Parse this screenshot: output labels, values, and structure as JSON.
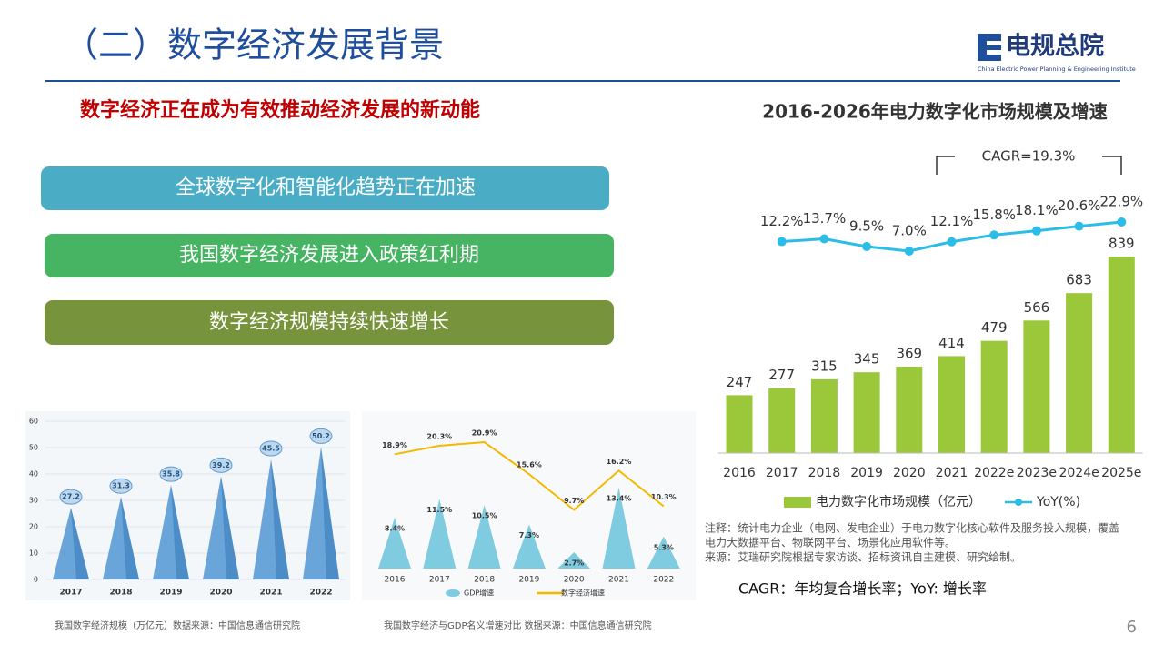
{
  "header": {
    "title": "（二）数字经济发展背景",
    "logo": "电规总院",
    "logo_sub": "China Electric Power Planning & Engineering Institute"
  },
  "subtitle": "数字经济正在成为有效推动经济发展的新动能",
  "boxes": [
    "全球数字化和智能化趋势正在加速",
    "我国数字经济发展进入政策红利期",
    "数字经济规模持续快速增长"
  ],
  "footnote": "CAGR：年均复合增长率；YoY: 增长率",
  "page_number": "6",
  "chart_data": [
    {
      "type": "bar",
      "caption": "我国数字经济规模（万亿元）数据来源：中国信息通信研究院",
      "categories": [
        "2017",
        "2018",
        "2019",
        "2020",
        "2021",
        "2022"
      ],
      "values": [
        27.2,
        31.3,
        35.8,
        39.2,
        45.5,
        50.2
      ],
      "color": "#5b9bd5",
      "ylim": [
        0,
        60
      ],
      "yticks": [
        0,
        10,
        20,
        30,
        40,
        50,
        60
      ],
      "grid": true
    },
    {
      "type": "bar-line",
      "caption": "我国数字经济与GDP名义增速对比 数据来源：中国信息通信研究院",
      "categories": [
        "2016",
        "2017",
        "2018",
        "2019",
        "2020",
        "2021",
        "2022"
      ],
      "series": [
        {
          "name": "GDP增速",
          "type": "bar",
          "color": "#7fcbe0",
          "values": [
            8.4,
            11.5,
            10.5,
            7.3,
            2.7,
            13.4,
            5.3
          ],
          "value_labels": [
            "8.4%",
            "11.5%",
            "10.5%",
            "7.3%",
            "2.7%",
            "13.4%",
            "5.3%"
          ]
        },
        {
          "name": "数字经济增速",
          "type": "line",
          "color": "#f5b800",
          "values": [
            18.9,
            20.3,
            20.9,
            15.6,
            9.7,
            16.2,
            10.3
          ],
          "value_labels": [
            "18.9%",
            "20.3%",
            "20.9%",
            "15.6%",
            "9.7%",
            "16.2%",
            "10.3%"
          ]
        }
      ]
    },
    {
      "type": "bar-line",
      "title": "2016-2026年电力数字化市场规模及增速",
      "annotation": "CAGR=19.3%",
      "categories": [
        "2016",
        "2017",
        "2018",
        "2019",
        "2020",
        "2021",
        "2022e",
        "2023e",
        "2024e",
        "2025e"
      ],
      "series": [
        {
          "name": "电力数字化市场规模（亿元）",
          "type": "bar",
          "color": "#9bc83a",
          "values": [
            247,
            277,
            315,
            345,
            369,
            414,
            479,
            566,
            683,
            839
          ]
        },
        {
          "name": "YoY(%)",
          "type": "line",
          "color": "#2bbde8",
          "values": [
            null,
            12.2,
            13.7,
            9.5,
            7.0,
            12.1,
            15.8,
            18.1,
            20.6,
            22.9
          ],
          "value_labels": [
            null,
            "12.2%",
            "13.7%",
            "9.5%",
            "7.0%",
            "12.1%",
            "15.8%",
            "18.1%",
            "20.6%",
            "22.9%"
          ]
        }
      ],
      "notes": [
        "注释：统计电力企业（电网、发电企业）于电力数字化核心软件及服务投入规模，覆盖",
        "电力大数据平台、物联网平台、场景化应用软件等。",
        "来源：艾瑞研究院根据专家访谈、招标资讯自主建模、研究绘制。"
      ]
    }
  ]
}
